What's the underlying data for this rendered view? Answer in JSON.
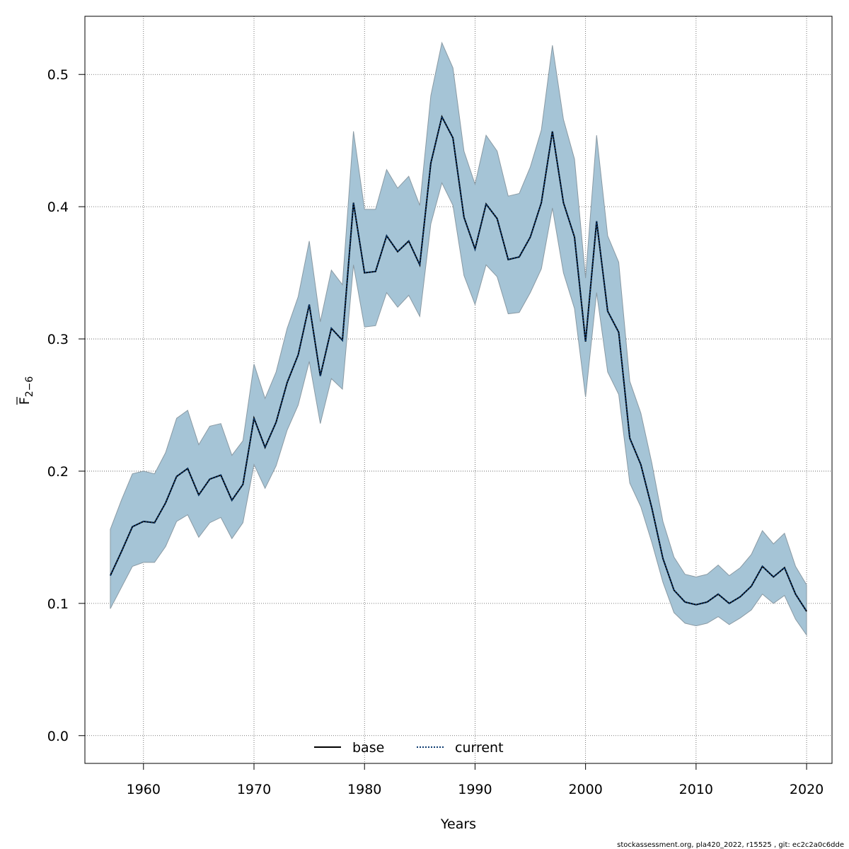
{
  "chart_data": {
    "type": "line",
    "xlabel": "Years",
    "ylabel_main": "F",
    "ylabel_sub": "2−6",
    "xlim": [
      1954.7,
      2022.3
    ],
    "ylim": [
      -0.021,
      0.544
    ],
    "x_ticks": [
      1960,
      1970,
      1980,
      1990,
      2000,
      2010,
      2020
    ],
    "y_ticks": [
      0.0,
      0.1,
      0.2,
      0.3,
      0.4,
      0.5
    ],
    "y_tick_labels": [
      "0.0",
      "0.1",
      "0.2",
      "0.3",
      "0.4",
      "0.5"
    ],
    "grid": true,
    "legend_position": "bottom-center",
    "colors": {
      "band_fill": "#a5c4d6",
      "band_stroke": "#8a9aa4",
      "base_line": "#000000",
      "current_line": "#0b3a70",
      "grid": "#555555"
    },
    "x": [
      1957,
      1958,
      1959,
      1960,
      1961,
      1962,
      1963,
      1964,
      1965,
      1966,
      1967,
      1968,
      1969,
      1970,
      1971,
      1972,
      1973,
      1974,
      1975,
      1976,
      1977,
      1978,
      1979,
      1980,
      1981,
      1982,
      1983,
      1984,
      1985,
      1986,
      1987,
      1988,
      1989,
      1990,
      1991,
      1992,
      1993,
      1994,
      1995,
      1996,
      1997,
      1998,
      1999,
      2000,
      2001,
      2002,
      2003,
      2004,
      2005,
      2006,
      2007,
      2008,
      2009,
      2010,
      2011,
      2012,
      2013,
      2014,
      2015,
      2016,
      2017,
      2018,
      2019,
      2020
    ],
    "series": [
      {
        "name": "base",
        "style": "solid",
        "values": [
          0.121,
          0.139,
          0.158,
          0.162,
          0.161,
          0.176,
          0.196,
          0.202,
          0.182,
          0.194,
          0.197,
          0.178,
          0.19,
          0.24,
          0.218,
          0.237,
          0.267,
          0.288,
          0.326,
          0.272,
          0.308,
          0.299,
          0.403,
          0.35,
          0.351,
          0.378,
          0.366,
          0.374,
          0.356,
          0.433,
          0.468,
          0.452,
          0.392,
          0.368,
          0.402,
          0.391,
          0.36,
          0.362,
          0.377,
          0.403,
          0.457,
          0.403,
          0.377,
          0.298,
          0.389,
          0.321,
          0.305,
          0.225,
          0.205,
          0.172,
          0.134,
          0.11,
          0.101,
          0.099,
          0.101,
          0.107,
          0.1,
          0.105,
          0.113,
          0.128,
          0.12,
          0.127,
          0.107,
          0.094
        ]
      },
      {
        "name": "current",
        "style": "dotted",
        "values": [
          0.121,
          0.139,
          0.158,
          0.162,
          0.161,
          0.176,
          0.196,
          0.202,
          0.182,
          0.194,
          0.197,
          0.178,
          0.19,
          0.24,
          0.218,
          0.237,
          0.267,
          0.288,
          0.326,
          0.272,
          0.308,
          0.299,
          0.403,
          0.35,
          0.351,
          0.378,
          0.366,
          0.374,
          0.356,
          0.433,
          0.468,
          0.452,
          0.392,
          0.368,
          0.402,
          0.391,
          0.36,
          0.362,
          0.377,
          0.403,
          0.457,
          0.403,
          0.377,
          0.298,
          0.389,
          0.321,
          0.305,
          0.225,
          0.205,
          0.172,
          0.134,
          0.11,
          0.101,
          0.099,
          0.101,
          0.107,
          0.1,
          0.105,
          0.113,
          0.128,
          0.12,
          0.127,
          0.107,
          0.094
        ]
      }
    ],
    "band_upper": [
      0.156,
      0.178,
      0.198,
      0.2,
      0.198,
      0.214,
      0.24,
      0.246,
      0.22,
      0.234,
      0.236,
      0.212,
      0.223,
      0.281,
      0.255,
      0.275,
      0.308,
      0.332,
      0.374,
      0.313,
      0.352,
      0.341,
      0.457,
      0.398,
      0.398,
      0.428,
      0.414,
      0.423,
      0.401,
      0.484,
      0.524,
      0.505,
      0.442,
      0.417,
      0.454,
      0.442,
      0.408,
      0.41,
      0.43,
      0.458,
      0.522,
      0.466,
      0.436,
      0.346,
      0.454,
      0.378,
      0.358,
      0.268,
      0.244,
      0.206,
      0.162,
      0.135,
      0.122,
      0.12,
      0.122,
      0.129,
      0.121,
      0.127,
      0.137,
      0.155,
      0.145,
      0.153,
      0.128,
      0.114
    ],
    "band_lower": [
      0.096,
      0.112,
      0.128,
      0.131,
      0.131,
      0.143,
      0.162,
      0.167,
      0.15,
      0.161,
      0.165,
      0.149,
      0.161,
      0.205,
      0.187,
      0.204,
      0.231,
      0.25,
      0.283,
      0.236,
      0.27,
      0.262,
      0.356,
      0.309,
      0.31,
      0.335,
      0.324,
      0.333,
      0.317,
      0.387,
      0.418,
      0.401,
      0.348,
      0.326,
      0.356,
      0.347,
      0.319,
      0.32,
      0.335,
      0.353,
      0.399,
      0.35,
      0.323,
      0.256,
      0.335,
      0.275,
      0.258,
      0.191,
      0.173,
      0.146,
      0.116,
      0.093,
      0.085,
      0.083,
      0.085,
      0.09,
      0.084,
      0.089,
      0.095,
      0.107,
      0.1,
      0.106,
      0.088,
      0.076
    ]
  },
  "footer": "stockassessment.org, pla420_2022, r15525 , git: ec2c2a0c6dde"
}
